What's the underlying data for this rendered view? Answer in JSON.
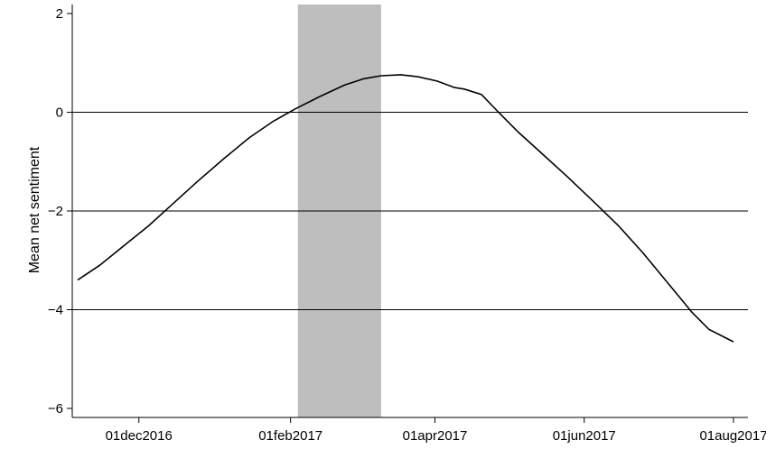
{
  "chart_data": {
    "type": "line",
    "ylabel": "Mean net sentiment",
    "xlabel": "",
    "x_tick_labels": [
      "01dec2016",
      "01feb2017",
      "01apr2017",
      "01jun2017",
      "01aug2017"
    ],
    "y_tick_labels": [
      "−6",
      "−4",
      "−2",
      "0",
      "2"
    ],
    "x_ticks": [
      "2016-12-01",
      "2017-02-01",
      "2017-04-01",
      "2017-06-01",
      "2017-08-01"
    ],
    "y_ticks": [
      -6,
      -4,
      -2,
      0,
      2
    ],
    "xlim": [
      "2016-11-06",
      "2017-08-01"
    ],
    "ylim": [
      -6.2,
      2.2
    ],
    "grid": "horizontal lines at y = -4, -2, 0",
    "shaded_region": {
      "start": "2017-02-04",
      "end": "2017-03-10",
      "color": "#bebebe"
    },
    "line_color": "#000000",
    "series": [
      {
        "x": [
          "2016-11-06",
          "2016-11-15",
          "2016-11-25",
          "2016-12-05",
          "2016-12-15",
          "2016-12-25",
          "2017-01-05",
          "2017-01-15",
          "2017-01-25",
          "2017-02-03",
          "2017-02-13",
          "2017-02-23",
          "2017-03-03",
          "2017-03-10",
          "2017-03-18",
          "2017-03-25",
          "2017-04-02",
          "2017-04-09",
          "2017-04-13",
          "2017-04-20",
          "2017-04-27",
          "2017-05-05",
          "2017-05-15",
          "2017-05-25",
          "2017-06-05",
          "2017-06-15",
          "2017-06-25",
          "2017-07-05",
          "2017-07-15",
          "2017-07-22",
          "2017-08-01"
        ],
        "y": [
          -3.4,
          -3.1,
          -2.7,
          -2.3,
          -1.85,
          -1.4,
          -0.93,
          -0.52,
          -0.18,
          0.07,
          0.32,
          0.55,
          0.68,
          0.74,
          0.76,
          0.72,
          0.63,
          0.5,
          0.47,
          0.36,
          0.0,
          -0.4,
          -0.85,
          -1.3,
          -1.82,
          -2.3,
          -2.85,
          -3.45,
          -4.05,
          -4.4,
          -4.65
        ]
      }
    ]
  }
}
